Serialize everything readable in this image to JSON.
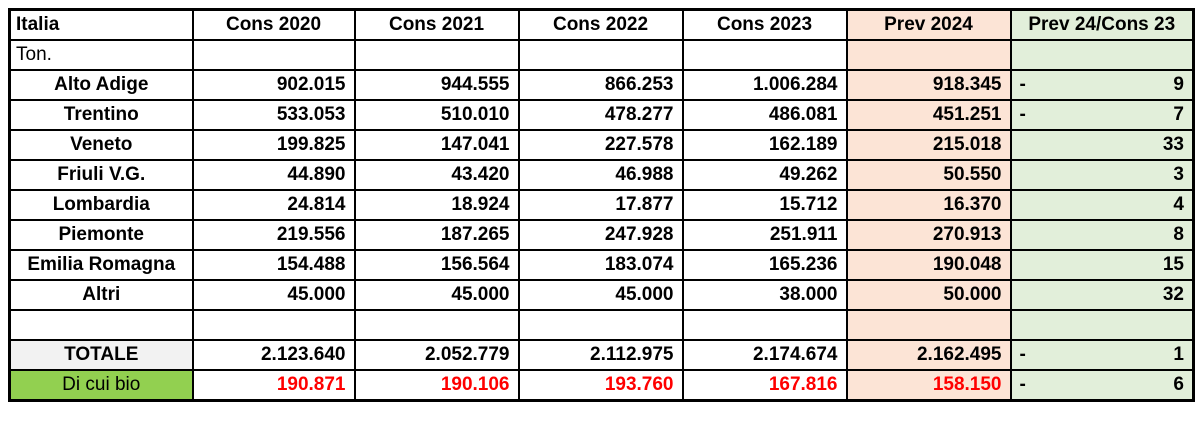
{
  "colors": {
    "prev_column_bg": "#FCE4D6",
    "delta_column_bg": "#E2EFDA",
    "bio_label_bg": "#92D050",
    "total_label_bg": "#F2F2F2",
    "bio_value_color": "#FF0000",
    "border": "#000000"
  },
  "table": {
    "corner_label": "Italia",
    "unit_label": "Ton.",
    "columns": [
      "Cons 2020",
      "Cons 2021",
      "Cons 2022",
      "Cons 2023",
      "Prev 2024",
      "Prev 24/Cons 23"
    ],
    "rows": [
      {
        "label": "Alto Adige",
        "values": [
          "902.015",
          "944.555",
          "866.253",
          "1.006.284",
          "918.345"
        ],
        "delta_sign": "-",
        "delta": "9"
      },
      {
        "label": "Trentino",
        "values": [
          "533.053",
          "510.010",
          "478.277",
          "486.081",
          "451.251"
        ],
        "delta_sign": "-",
        "delta": "7"
      },
      {
        "label": "Veneto",
        "values": [
          "199.825",
          "147.041",
          "227.578",
          "162.189",
          "215.018"
        ],
        "delta_sign": "",
        "delta": "33"
      },
      {
        "label": "Friuli V.G.",
        "values": [
          "44.890",
          "43.420",
          "46.988",
          "49.262",
          "50.550"
        ],
        "delta_sign": "",
        "delta": "3"
      },
      {
        "label": "Lombardia",
        "values": [
          "24.814",
          "18.924",
          "17.877",
          "15.712",
          "16.370"
        ],
        "delta_sign": "",
        "delta": "4"
      },
      {
        "label": "Piemonte",
        "values": [
          "219.556",
          "187.265",
          "247.928",
          "251.911",
          "270.913"
        ],
        "delta_sign": "",
        "delta": "8"
      },
      {
        "label": "Emilia Romagna",
        "values": [
          "154.488",
          "156.564",
          "183.074",
          "165.236",
          "190.048"
        ],
        "delta_sign": "",
        "delta": "15"
      },
      {
        "label": "Altri",
        "values": [
          "45.000",
          "45.000",
          "45.000",
          "38.000",
          "50.000"
        ],
        "delta_sign": "",
        "delta": "32"
      }
    ],
    "total_row": {
      "label": "TOTALE",
      "values": [
        "2.123.640",
        "2.052.779",
        "2.112.975",
        "2.174.674",
        "2.162.495"
      ],
      "delta_sign": "-",
      "delta": "1"
    },
    "bio_row": {
      "label": "Di cui bio",
      "values": [
        "190.871",
        "190.106",
        "193.760",
        "167.816",
        "158.150"
      ],
      "delta_sign": "-",
      "delta": "6"
    }
  }
}
